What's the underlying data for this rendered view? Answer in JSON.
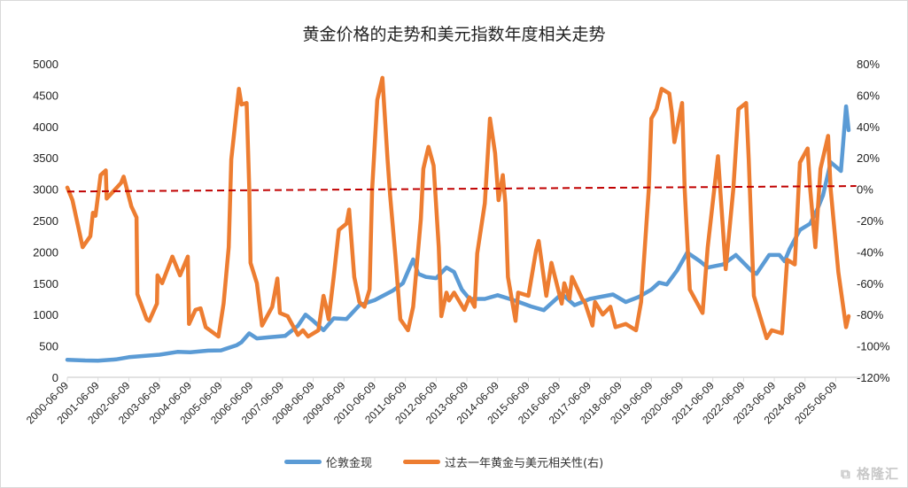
{
  "chart_data": {
    "type": "line",
    "title": "黄金价格的走势和美元指数年度相关走势",
    "xlabel": "",
    "ylabel": "",
    "grid": false,
    "legend_position": "bottom",
    "x_tick_labels": [
      "2000-06-09",
      "2001-06-09",
      "2002-06-09",
      "2003-06-09",
      "2004-06-09",
      "2005-06-09",
      "2006-06-09",
      "2007-06-09",
      "2008-06-09",
      "2009-06-09",
      "2010-06-09",
      "2011-06-09",
      "2012-06-09",
      "2013-06-09",
      "2014-06-09",
      "2015-06-09",
      "2016-06-09",
      "2017-06-09",
      "2018-06-09",
      "2019-06-09",
      "2020-06-09",
      "2021-06-09",
      "2022-06-09",
      "2023-06-09",
      "2024-06-09",
      "2025-06-09"
    ],
    "y_left": {
      "ylim": [
        0,
        5000
      ],
      "ticks": [
        "0",
        "500",
        "1000",
        "1500",
        "2000",
        "2500",
        "3000",
        "3500",
        "4000",
        "4500",
        "5000"
      ]
    },
    "y_right": {
      "ylim": [
        -120,
        80
      ],
      "unit": "%",
      "ticks": [
        "-120%",
        "-100%",
        "-80%",
        "-60%",
        "-40%",
        "-20%",
        "0%",
        "20%",
        "40%",
        "60%",
        "80%"
      ]
    },
    "series": [
      {
        "name": "伦敦金现",
        "axis": "left",
        "color": "#5b9bd5",
        "points": [
          [
            "2000-06",
            280
          ],
          [
            "2001-01",
            268
          ],
          [
            "2001-06",
            265
          ],
          [
            "2002-01",
            285
          ],
          [
            "2002-06",
            320
          ],
          [
            "2003-01",
            345
          ],
          [
            "2003-06",
            360
          ],
          [
            "2004-01",
            405
          ],
          [
            "2004-06",
            400
          ],
          [
            "2005-01",
            425
          ],
          [
            "2005-06",
            430
          ],
          [
            "2005-12",
            510
          ],
          [
            "2006-02",
            560
          ],
          [
            "2006-05",
            700
          ],
          [
            "2006-08",
            620
          ],
          [
            "2007-01",
            640
          ],
          [
            "2007-07",
            660
          ],
          [
            "2007-12",
            820
          ],
          [
            "2008-03",
            1000
          ],
          [
            "2008-06",
            900
          ],
          [
            "2008-10",
            750
          ],
          [
            "2009-02",
            940
          ],
          [
            "2009-07",
            930
          ],
          [
            "2009-12",
            1150
          ],
          [
            "2010-06",
            1230
          ],
          [
            "2011-01",
            1380
          ],
          [
            "2011-05",
            1500
          ],
          [
            "2011-09",
            1880
          ],
          [
            "2011-11",
            1650
          ],
          [
            "2012-02",
            1600
          ],
          [
            "2012-06",
            1580
          ],
          [
            "2012-10",
            1750
          ],
          [
            "2013-01",
            1680
          ],
          [
            "2013-04",
            1400
          ],
          [
            "2013-07",
            1250
          ],
          [
            "2014-01",
            1250
          ],
          [
            "2014-06",
            1310
          ],
          [
            "2015-01",
            1220
          ],
          [
            "2015-07",
            1130
          ],
          [
            "2015-12",
            1070
          ],
          [
            "2016-07",
            1330
          ],
          [
            "2016-12",
            1150
          ],
          [
            "2017-06",
            1250
          ],
          [
            "2018-03",
            1320
          ],
          [
            "2018-08",
            1200
          ],
          [
            "2019-01",
            1280
          ],
          [
            "2019-06",
            1400
          ],
          [
            "2019-09",
            1510
          ],
          [
            "2019-12",
            1480
          ],
          [
            "2020-04",
            1700
          ],
          [
            "2020-08",
            1990
          ],
          [
            "2021-01",
            1850
          ],
          [
            "2021-04",
            1750
          ],
          [
            "2021-10",
            1800
          ],
          [
            "2022-03",
            1950
          ],
          [
            "2022-09",
            1700
          ],
          [
            "2022-11",
            1650
          ],
          [
            "2023-04",
            1950
          ],
          [
            "2023-08",
            1950
          ],
          [
            "2023-10",
            1850
          ],
          [
            "2023-12",
            2050
          ],
          [
            "2024-04",
            2350
          ],
          [
            "2024-08",
            2450
          ],
          [
            "2024-11",
            2700
          ],
          [
            "2025-01",
            2900
          ],
          [
            "2025-04",
            3430
          ],
          [
            "2025-08",
            3290
          ],
          [
            "2025-10",
            4320
          ],
          [
            "2025-11",
            3940
          ]
        ]
      },
      {
        "name": "过去一年黄金与美元相关性(右)",
        "axis": "right",
        "color": "#ed7d31",
        "points": [
          [
            "2000-06",
            1
          ],
          [
            "2000-08",
            -7
          ],
          [
            "2000-12",
            -37
          ],
          [
            "2001-03",
            -30
          ],
          [
            "2001-04",
            -15
          ],
          [
            "2001-05",
            -17
          ],
          [
            "2001-07",
            9
          ],
          [
            "2001-09",
            12
          ],
          [
            "2001-09-20",
            -6
          ],
          [
            "2002-03",
            4
          ],
          [
            "2002-04",
            8
          ],
          [
            "2002-07",
            -11
          ],
          [
            "2002-09",
            -18
          ],
          [
            "2002-09-20",
            -67
          ],
          [
            "2003-01",
            -83
          ],
          [
            "2003-02",
            -84
          ],
          [
            "2003-05",
            -73
          ],
          [
            "2003-05-15",
            -55
          ],
          [
            "2003-07",
            -60
          ],
          [
            "2003-11",
            -43
          ],
          [
            "2004-02",
            -55
          ],
          [
            "2004-05-10",
            -43
          ],
          [
            "2004-05-25",
            -86
          ],
          [
            "2004-08",
            -77
          ],
          [
            "2004-10",
            -76
          ],
          [
            "2004-12",
            -88
          ],
          [
            "2005-05",
            -94
          ],
          [
            "2005-07",
            -73
          ],
          [
            "2005-09",
            -37
          ],
          [
            "2005-10",
            19
          ],
          [
            "2006-01",
            64
          ],
          [
            "2006-02",
            54
          ],
          [
            "2006-04",
            55
          ],
          [
            "2006-05-10",
            0
          ],
          [
            "2006-05-25",
            -47
          ],
          [
            "2006-08",
            -60
          ],
          [
            "2006-10",
            -87
          ],
          [
            "2007-02",
            -75
          ],
          [
            "2007-04",
            -57
          ],
          [
            "2007-05",
            -79
          ],
          [
            "2007-08",
            -81
          ],
          [
            "2007-12",
            -93
          ],
          [
            "2008-02",
            -90
          ],
          [
            "2008-04",
            -94
          ],
          [
            "2008-08",
            -90
          ],
          [
            "2008-10",
            -68
          ],
          [
            "2008-11-10",
            -75
          ],
          [
            "2008-12",
            -83
          ],
          [
            "2009-02",
            -56
          ],
          [
            "2009-04",
            -26
          ],
          [
            "2009-07",
            -22
          ],
          [
            "2009-08",
            -13
          ],
          [
            "2009-10",
            -56
          ],
          [
            "2009-12",
            -72
          ],
          [
            "2010-02",
            -75
          ],
          [
            "2010-04",
            -64
          ],
          [
            "2010-05",
            0
          ],
          [
            "2010-07",
            57
          ],
          [
            "2010-09",
            71
          ],
          [
            "2010-11",
            19
          ],
          [
            "2010-12",
            -4
          ],
          [
            "2011-02",
            -41
          ],
          [
            "2011-04",
            -83
          ],
          [
            "2011-07",
            -90
          ],
          [
            "2011-09",
            -75
          ],
          [
            "2011-12",
            -19
          ],
          [
            "2012-01",
            13
          ],
          [
            "2012-03",
            27
          ],
          [
            "2012-05",
            15
          ],
          [
            "2012-07",
            -37
          ],
          [
            "2012-08",
            -81
          ],
          [
            "2012-10",
            -66
          ],
          [
            "2012-11",
            -71
          ],
          [
            "2013-01",
            -66
          ],
          [
            "2013-05",
            -77
          ],
          [
            "2013-07",
            -69
          ],
          [
            "2013-09",
            -75
          ],
          [
            "2013-10",
            -41
          ],
          [
            "2014-01",
            -9
          ],
          [
            "2014-03",
            45
          ],
          [
            "2014-05",
            23
          ],
          [
            "2014-06-20",
            -7
          ],
          [
            "2014-08",
            9
          ],
          [
            "2014-09",
            -9
          ],
          [
            "2014-10",
            -56
          ],
          [
            "2015-01",
            -84
          ],
          [
            "2015-02",
            -66
          ],
          [
            "2015-06",
            -68
          ],
          [
            "2015-09",
            -39
          ],
          [
            "2015-10",
            -33
          ],
          [
            "2016-01",
            -68
          ],
          [
            "2016-03",
            -47
          ],
          [
            "2016-07",
            -73
          ],
          [
            "2016-08",
            -60
          ],
          [
            "2016-10",
            -70
          ],
          [
            "2016-11",
            -56
          ],
          [
            "2017-03",
            -70
          ],
          [
            "2017-04",
            -72
          ],
          [
            "2017-07",
            -87
          ],
          [
            "2017-08",
            -72
          ],
          [
            "2017-11",
            -80
          ],
          [
            "2018-02",
            -75
          ],
          [
            "2018-04",
            -88
          ],
          [
            "2018-08",
            -86
          ],
          [
            "2018-12",
            -90
          ],
          [
            "2019-02",
            -72
          ],
          [
            "2019-05",
            0
          ],
          [
            "2019-06",
            45
          ],
          [
            "2019-08",
            51
          ],
          [
            "2019-10",
            64
          ],
          [
            "2020-01",
            61
          ],
          [
            "2020-02",
            49
          ],
          [
            "2020-03",
            30
          ],
          [
            "2020-06",
            55
          ],
          [
            "2020-07",
            0
          ],
          [
            "2020-09",
            -64
          ],
          [
            "2021-02",
            -79
          ],
          [
            "2021-04",
            -37
          ],
          [
            "2021-08",
            21
          ],
          [
            "2021-11",
            -51
          ],
          [
            "2022-02",
            0
          ],
          [
            "2022-04",
            51
          ],
          [
            "2022-07",
            55
          ],
          [
            "2022-08",
            19
          ],
          [
            "2022-10",
            -68
          ],
          [
            "2023-03",
            -95
          ],
          [
            "2023-05",
            -90
          ],
          [
            "2023-09",
            -92
          ],
          [
            "2023-11",
            -45
          ],
          [
            "2024-02",
            -48
          ],
          [
            "2024-04",
            17
          ],
          [
            "2024-07",
            26
          ],
          [
            "2024-08",
            0
          ],
          [
            "2024-10",
            -37
          ],
          [
            "2024-12",
            13
          ],
          [
            "2025-03",
            34
          ],
          [
            "2025-04",
            0
          ],
          [
            "2025-07",
            -53
          ],
          [
            "2025-10",
            -88
          ],
          [
            "2025-11",
            -81
          ]
        ]
      }
    ],
    "trendline": {
      "axis": "right",
      "color": "#c00000",
      "style": "dashed",
      "start": [
        "2000-06",
        -1.5
      ],
      "end": [
        "2026-02",
        2
      ]
    }
  },
  "watermark": "格隆汇"
}
